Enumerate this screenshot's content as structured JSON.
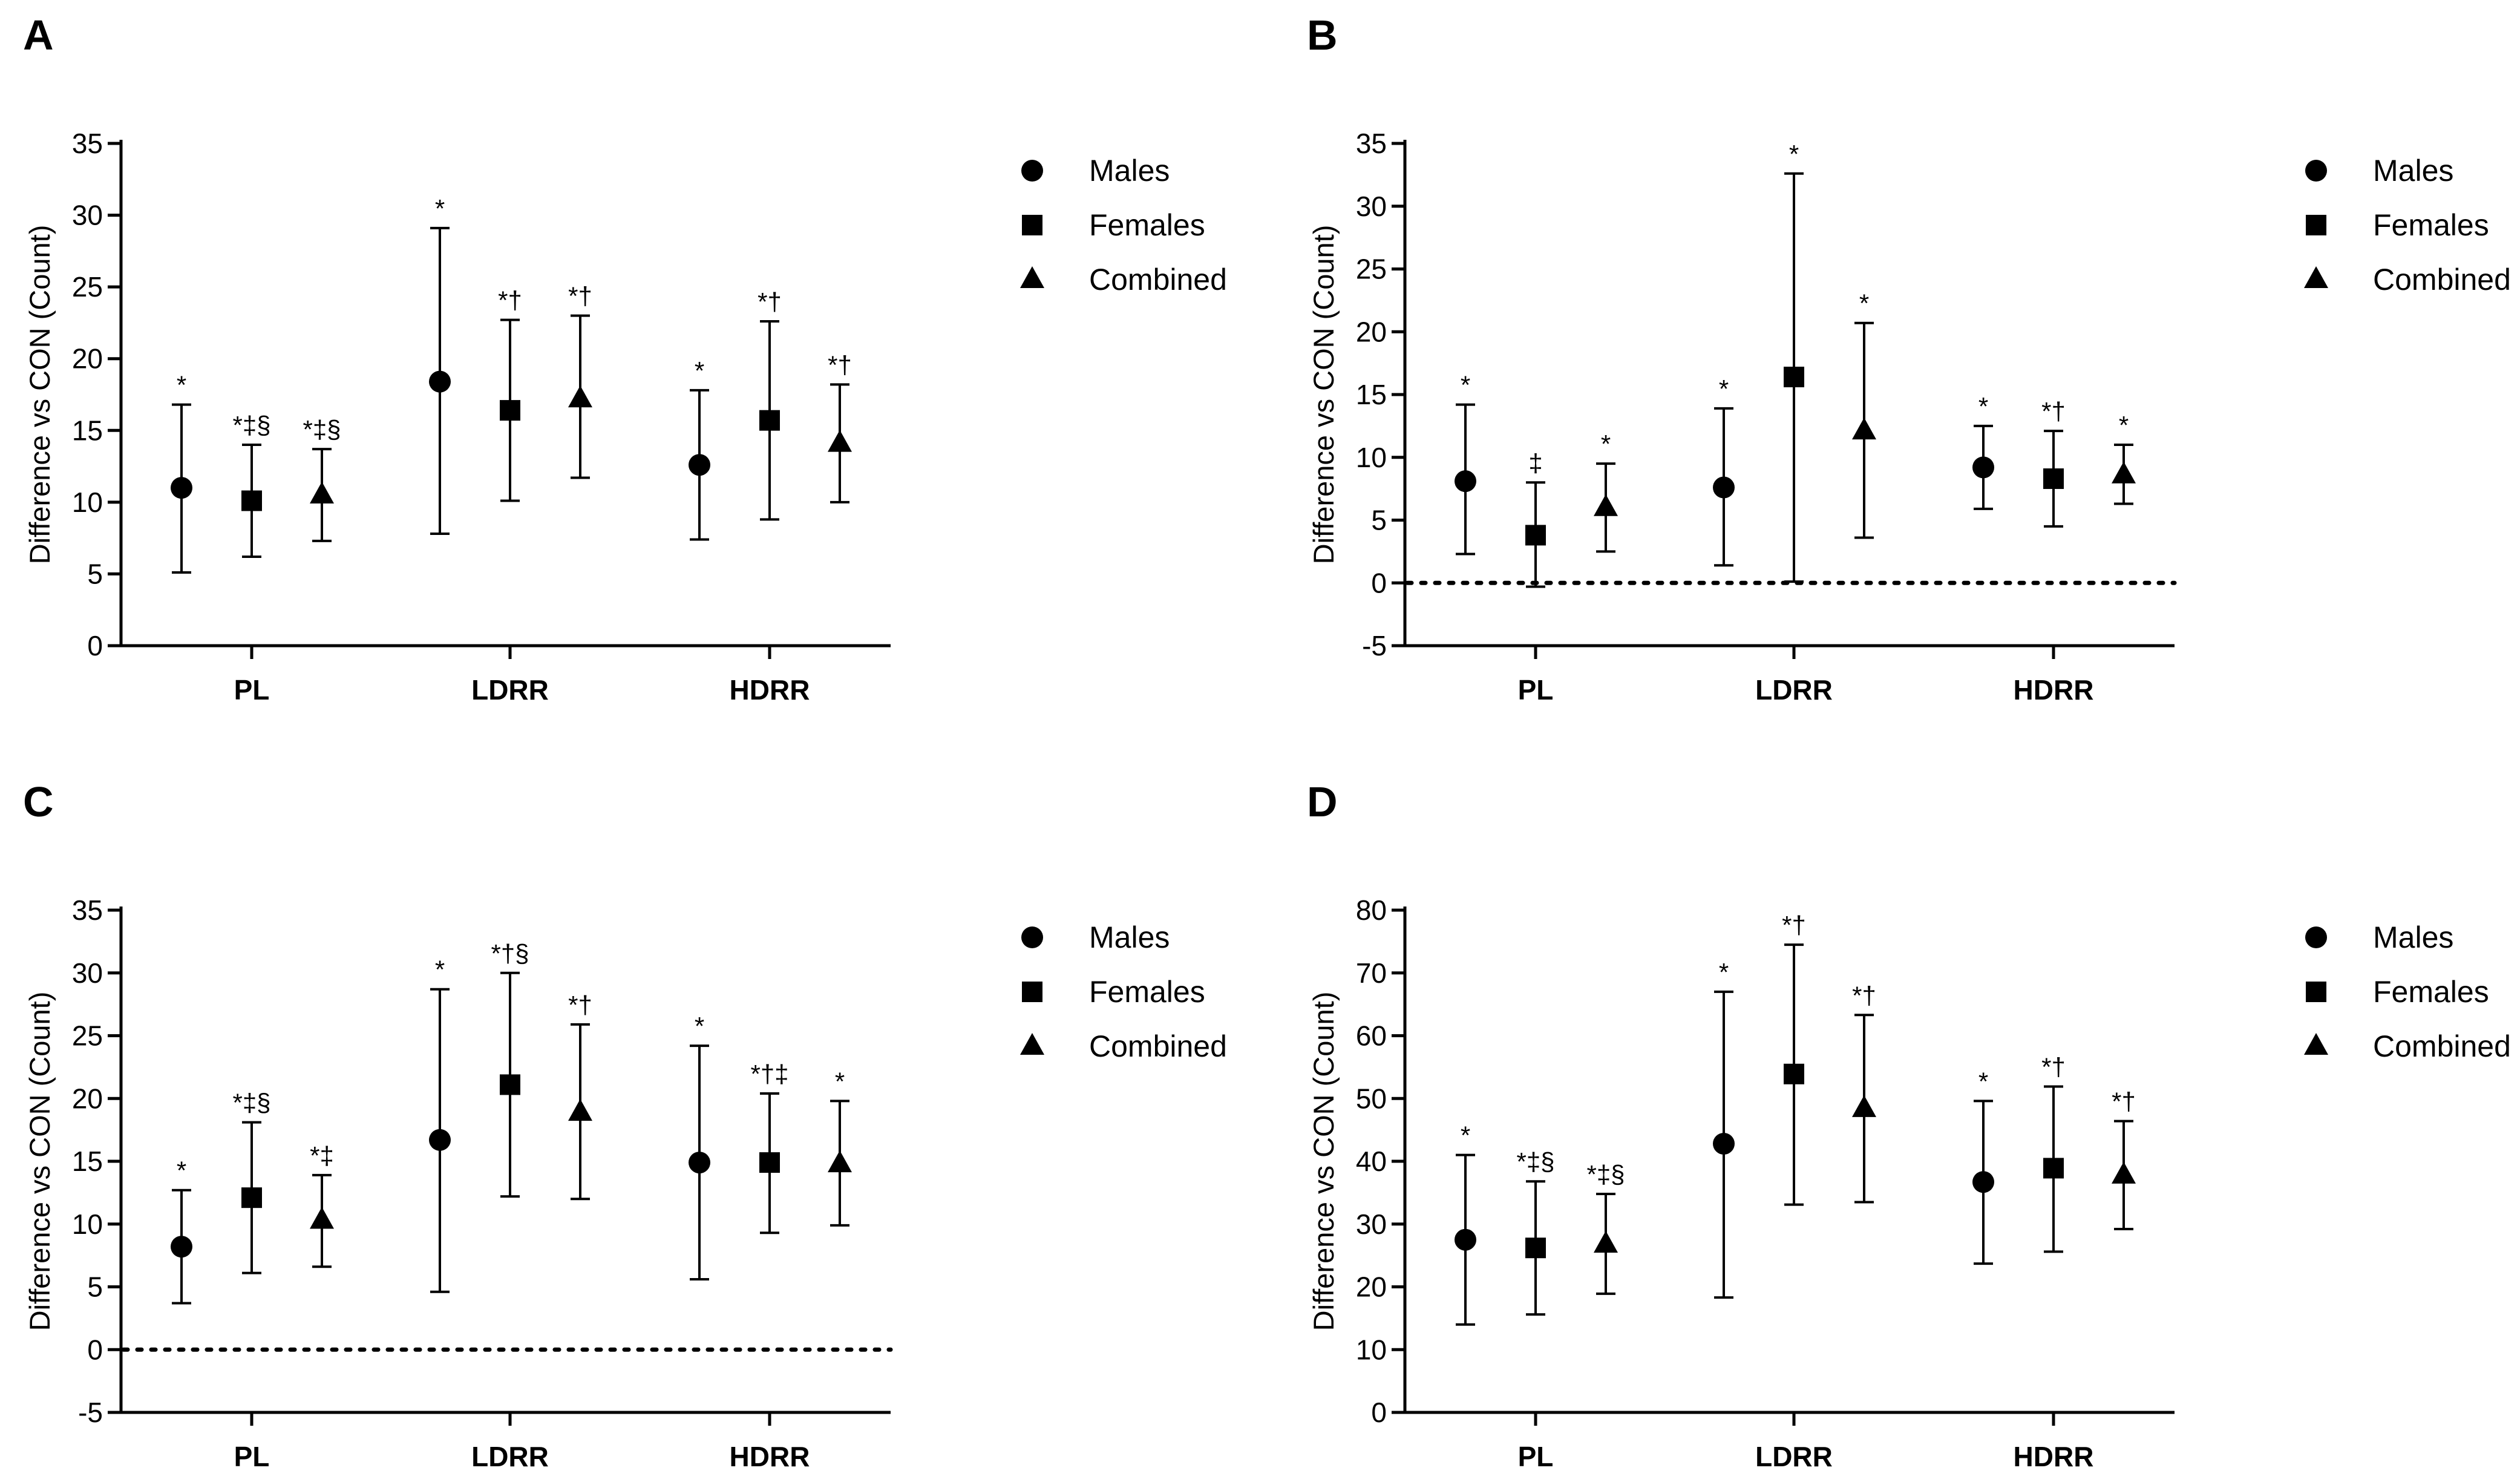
{
  "markers": {
    "Males": "circle",
    "Females": "square",
    "Combined": "triangle"
  },
  "colors": {
    "ink": "#000000",
    "background": "#ffffff"
  },
  "chart_data": [
    {
      "panel": "A",
      "type": "scatter",
      "ylabel": "Difference vs CON (Count)",
      "ylim": [
        0,
        35
      ],
      "yticks": [
        "0",
        "5",
        "10",
        "15",
        "20",
        "25",
        "30",
        "35"
      ],
      "categories": [
        "PL",
        "LDRR",
        "HDRR"
      ],
      "zero_line": false,
      "legend": [
        "Males",
        "Females",
        "Combined"
      ],
      "series": [
        {
          "name": "Males",
          "values": [
            11.0,
            18.4,
            12.6
          ],
          "lower": [
            5.1,
            7.8,
            7.4
          ],
          "upper": [
            16.8,
            29.1,
            17.8
          ],
          "labels": [
            "*",
            "*",
            "*"
          ]
        },
        {
          "name": "Females",
          "values": [
            10.1,
            16.4,
            15.7
          ],
          "lower": [
            6.2,
            10.1,
            8.8
          ],
          "upper": [
            14.0,
            22.7,
            22.6
          ],
          "labels": [
            "*‡§",
            "*†",
            "*†"
          ]
        },
        {
          "name": "Combined",
          "values": [
            10.5,
            17.2,
            14.1
          ],
          "lower": [
            7.3,
            11.7,
            10.0
          ],
          "upper": [
            13.7,
            23.0,
            18.2
          ],
          "labels": [
            "*‡§",
            "*†",
            "*†"
          ]
        }
      ]
    },
    {
      "panel": "B",
      "type": "scatter",
      "ylabel": "Difference vs CON (Count)",
      "ylim": [
        -5,
        35
      ],
      "yticks": [
        "-5",
        "0",
        "5",
        "10",
        "15",
        "20",
        "25",
        "30",
        "35"
      ],
      "categories": [
        "PL",
        "LDRR",
        "HDRR"
      ],
      "zero_line": true,
      "legend": [
        "Males",
        "Females",
        "Combined"
      ],
      "series": [
        {
          "name": "Males",
          "values": [
            8.1,
            7.6,
            9.2
          ],
          "lower": [
            2.3,
            1.4,
            5.9
          ],
          "upper": [
            14.2,
            13.9,
            12.5
          ],
          "labels": [
            "*",
            "*",
            "*"
          ]
        },
        {
          "name": "Females",
          "values": [
            3.8,
            16.4,
            8.3
          ],
          "lower": [
            -0.3,
            0.1,
            4.5
          ],
          "upper": [
            8.0,
            32.6,
            12.1
          ],
          "labels": [
            "‡",
            "*",
            "*†"
          ]
        },
        {
          "name": "Combined",
          "values": [
            6.0,
            12.1,
            8.6
          ],
          "lower": [
            2.5,
            3.6,
            6.3
          ],
          "upper": [
            9.5,
            20.7,
            11.0
          ],
          "labels": [
            "*",
            "*",
            "*"
          ]
        }
      ]
    },
    {
      "panel": "C",
      "type": "scatter",
      "ylabel": "Difference vs CON (Count)",
      "ylim": [
        -5,
        35
      ],
      "yticks": [
        "-5",
        "0",
        "5",
        "10",
        "15",
        "20",
        "25",
        "30",
        "35"
      ],
      "categories": [
        "PL",
        "LDRR",
        "HDRR"
      ],
      "zero_line": true,
      "legend": [
        "Males",
        "Females",
        "Combined"
      ],
      "series": [
        {
          "name": "Males",
          "values": [
            8.2,
            16.7,
            14.9
          ],
          "lower": [
            3.7,
            4.6,
            5.6
          ],
          "upper": [
            12.7,
            28.7,
            24.2
          ],
          "labels": [
            "*",
            "*",
            "*"
          ]
        },
        {
          "name": "Females",
          "values": [
            12.1,
            21.1,
            14.9
          ],
          "lower": [
            6.1,
            12.2,
            9.3
          ],
          "upper": [
            18.1,
            30.0,
            20.4
          ],
          "labels": [
            "*‡§",
            "*†§",
            "*†‡"
          ]
        },
        {
          "name": "Combined",
          "values": [
            10.3,
            18.9,
            14.8
          ],
          "lower": [
            6.6,
            12.0,
            9.9
          ],
          "upper": [
            13.9,
            25.9,
            19.8
          ],
          "labels": [
            "*‡",
            "*†",
            "*"
          ]
        }
      ]
    },
    {
      "panel": "D",
      "type": "scatter",
      "ylabel": "Difference vs CON (Count)",
      "ylim": [
        0,
        80
      ],
      "yticks": [
        "0",
        "10",
        "20",
        "30",
        "40",
        "50",
        "60",
        "70",
        "80"
      ],
      "categories": [
        "PL",
        "LDRR",
        "HDRR"
      ],
      "zero_line": false,
      "legend": [
        "Males",
        "Females",
        "Combined"
      ],
      "series": [
        {
          "name": "Males",
          "values": [
            27.5,
            42.8,
            36.7
          ],
          "lower": [
            14.0,
            18.3,
            23.7
          ],
          "upper": [
            41.0,
            67.0,
            49.6
          ],
          "labels": [
            "*",
            "*",
            "*"
          ]
        },
        {
          "name": "Females",
          "values": [
            26.2,
            53.9,
            38.9
          ],
          "lower": [
            15.6,
            33.1,
            25.6
          ],
          "upper": [
            36.8,
            74.5,
            51.9
          ],
          "labels": [
            "*‡§",
            "*†",
            "*†"
          ]
        },
        {
          "name": "Combined",
          "values": [
            26.8,
            48.4,
            37.8
          ],
          "lower": [
            18.9,
            33.5,
            29.2
          ],
          "upper": [
            34.8,
            63.3,
            46.4
          ],
          "labels": [
            "*‡§",
            "*†",
            "*†"
          ]
        }
      ]
    }
  ]
}
